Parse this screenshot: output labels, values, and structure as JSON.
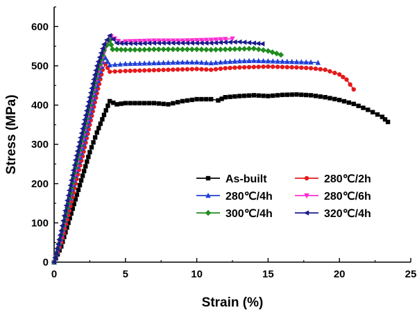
{
  "chart_data": {
    "type": "line",
    "xlabel": "Strain (%)",
    "ylabel": "Stress (MPa)",
    "xlim": [
      0,
      25
    ],
    "ylim": [
      0,
      650
    ],
    "x_ticks": [
      "0",
      "5",
      "10",
      "15",
      "20",
      "25"
    ],
    "y_ticks": [
      "0",
      "100",
      "200",
      "300",
      "400",
      "500",
      "600"
    ],
    "grid": false,
    "legend_position": "lower-right",
    "legend_columns": 2,
    "series": [
      {
        "name": "As-built",
        "color": "#000000",
        "marker": "square",
        "points": [
          [
            0,
            0
          ],
          [
            0.5,
            40
          ],
          [
            1,
            100
          ],
          [
            1.5,
            160
          ],
          [
            2,
            220
          ],
          [
            2.5,
            280
          ],
          [
            3,
            330
          ],
          [
            3.5,
            375
          ],
          [
            3.9,
            410
          ],
          [
            4.4,
            402
          ],
          [
            5,
            405
          ],
          [
            6,
            405
          ],
          [
            7,
            405
          ],
          [
            8,
            402
          ],
          [
            9,
            410
          ],
          [
            10,
            415
          ],
          [
            11,
            415
          ],
          [
            11.5,
            412
          ],
          [
            12,
            420
          ],
          [
            13,
            423
          ],
          [
            14,
            425
          ],
          [
            15,
            423
          ],
          [
            16,
            426
          ],
          [
            17,
            427
          ],
          [
            18,
            425
          ],
          [
            19,
            420
          ],
          [
            20,
            413
          ],
          [
            21,
            403
          ],
          [
            22,
            388
          ],
          [
            23,
            370
          ],
          [
            23.4,
            357
          ]
        ]
      },
      {
        "name": "280℃/2h",
        "color": "#e41a1c",
        "marker": "circle",
        "points": [
          [
            0,
            0
          ],
          [
            0.5,
            50
          ],
          [
            1,
            120
          ],
          [
            1.5,
            200
          ],
          [
            2,
            270
          ],
          [
            2.5,
            350
          ],
          [
            3,
            430
          ],
          [
            3.4,
            490
          ],
          [
            3.6,
            505
          ],
          [
            3.9,
            485
          ],
          [
            5,
            487
          ],
          [
            6,
            488
          ],
          [
            7,
            489
          ],
          [
            8,
            490
          ],
          [
            9,
            491
          ],
          [
            10,
            492
          ],
          [
            11,
            490
          ],
          [
            12,
            494
          ],
          [
            13,
            496
          ],
          [
            14,
            497
          ],
          [
            15,
            498
          ],
          [
            16,
            497
          ],
          [
            17,
            496
          ],
          [
            18,
            494
          ],
          [
            19,
            490
          ],
          [
            20,
            478
          ],
          [
            20.5,
            465
          ],
          [
            21,
            440
          ]
        ]
      },
      {
        "name": "280℃/4h",
        "color": "#1f3fd6",
        "marker": "triangle-up",
        "points": [
          [
            0,
            0
          ],
          [
            0.5,
            60
          ],
          [
            1,
            140
          ],
          [
            1.5,
            220
          ],
          [
            2,
            290
          ],
          [
            2.5,
            370
          ],
          [
            3,
            450
          ],
          [
            3.4,
            510
          ],
          [
            3.6,
            520
          ],
          [
            3.9,
            502
          ],
          [
            5,
            505
          ],
          [
            6,
            506
          ],
          [
            7,
            507
          ],
          [
            8,
            508
          ],
          [
            9,
            509
          ],
          [
            10,
            509
          ],
          [
            11,
            507
          ],
          [
            12,
            510
          ],
          [
            13,
            512
          ],
          [
            14,
            513
          ],
          [
            15,
            512
          ],
          [
            16,
            511
          ],
          [
            17,
            510
          ],
          [
            18,
            509
          ],
          [
            18.5,
            508
          ]
        ]
      },
      {
        "name": "280℃/6h",
        "color": "#ff2dd2",
        "marker": "triangle-down",
        "points": [
          [
            0,
            0
          ],
          [
            0.5,
            60
          ],
          [
            1,
            150
          ],
          [
            1.5,
            230
          ],
          [
            2,
            310
          ],
          [
            2.5,
            390
          ],
          [
            3,
            470
          ],
          [
            3.6,
            545
          ],
          [
            4,
            575
          ],
          [
            4.5,
            563
          ],
          [
            5,
            562
          ],
          [
            6,
            563
          ],
          [
            7,
            564
          ],
          [
            8,
            564
          ],
          [
            9,
            564
          ],
          [
            10,
            565
          ],
          [
            11,
            566
          ],
          [
            12,
            568
          ],
          [
            12.5,
            569
          ]
        ]
      },
      {
        "name": "300℃/4h",
        "color": "#1f8c1f",
        "marker": "diamond",
        "points": [
          [
            0,
            0
          ],
          [
            0.5,
            70
          ],
          [
            1,
            150
          ],
          [
            1.5,
            240
          ],
          [
            2,
            320
          ],
          [
            2.5,
            400
          ],
          [
            3,
            480
          ],
          [
            3.5,
            540
          ],
          [
            3.9,
            565
          ],
          [
            4.1,
            542
          ],
          [
            5,
            541
          ],
          [
            6,
            541
          ],
          [
            7,
            542
          ],
          [
            8,
            542
          ],
          [
            9,
            542
          ],
          [
            10,
            542
          ],
          [
            11,
            541
          ],
          [
            12,
            542
          ],
          [
            13,
            543
          ],
          [
            14,
            544
          ],
          [
            15,
            538
          ],
          [
            15.9,
            528
          ]
        ]
      },
      {
        "name": "320℃/4h",
        "color": "#1a1a8c",
        "marker": "left-triangle",
        "points": [
          [
            0,
            0
          ],
          [
            0.5,
            80
          ],
          [
            1,
            170
          ],
          [
            1.5,
            260
          ],
          [
            2,
            340
          ],
          [
            2.5,
            420
          ],
          [
            3,
            500
          ],
          [
            3.5,
            555
          ],
          [
            3.9,
            577
          ],
          [
            4.4,
            558
          ],
          [
            5,
            557
          ],
          [
            6,
            557
          ],
          [
            7,
            558
          ],
          [
            8,
            558
          ],
          [
            9,
            558
          ],
          [
            10,
            558
          ],
          [
            11,
            558
          ],
          [
            12,
            560
          ],
          [
            13,
            561
          ],
          [
            14,
            558
          ],
          [
            14.6,
            556
          ]
        ]
      }
    ]
  }
}
